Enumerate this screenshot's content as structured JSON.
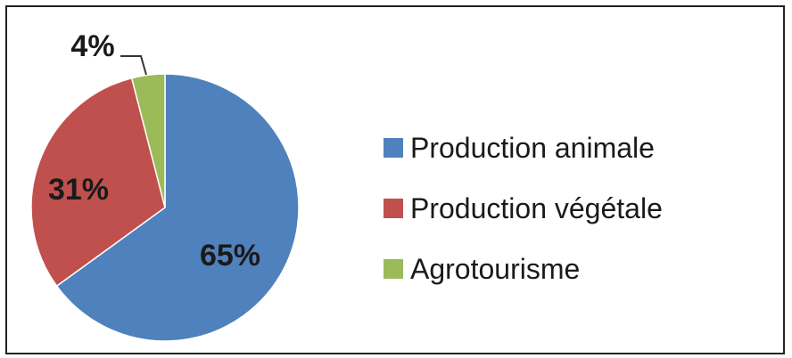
{
  "chart_data": {
    "type": "pie",
    "title": "",
    "slices": [
      {
        "name": "Production animale",
        "value": 65,
        "label": "65%",
        "color": "#4f81bd"
      },
      {
        "name": "Production végétale",
        "value": 31,
        "label": "31%",
        "color": "#c0504d"
      },
      {
        "name": "Agrotourisme",
        "value": 4,
        "label": "4%",
        "color": "#9bbb59"
      }
    ],
    "legend_position": "right"
  }
}
